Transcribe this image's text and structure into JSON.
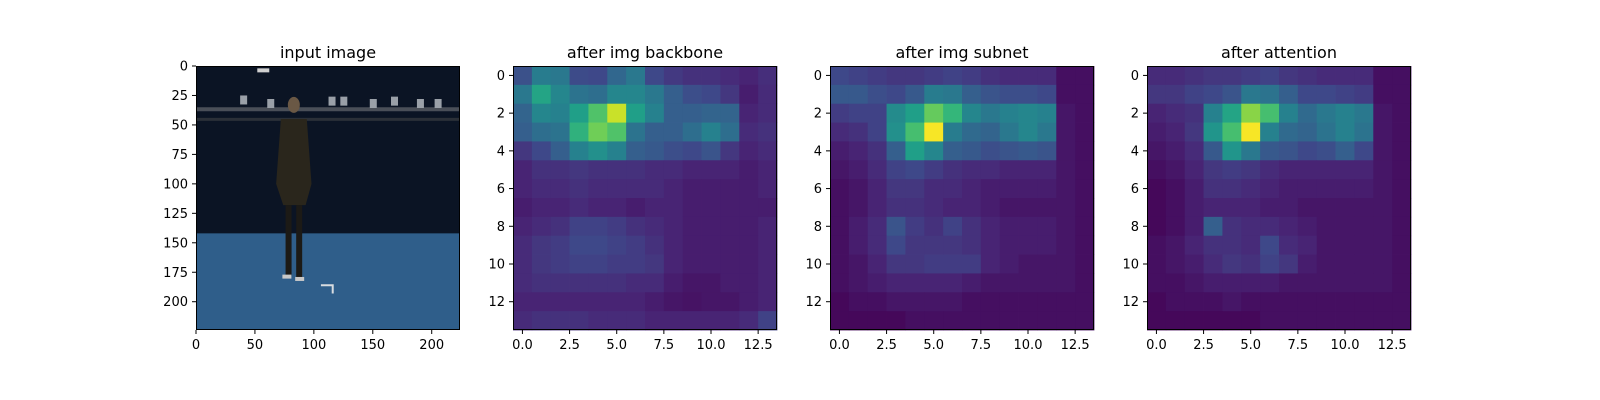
{
  "chart_data": [
    {
      "type": "image",
      "title": "input image",
      "xlim": [
        0,
        224
      ],
      "ylim": [
        224,
        0
      ],
      "x_ticks": [
        0,
        50,
        100,
        150,
        200
      ],
      "y_ticks": [
        0,
        25,
        50,
        75,
        100,
        125,
        150,
        175,
        200
      ],
      "scene_colors": {
        "backdrop": "#0b1424",
        "floor": "#2f5e8a",
        "person": "#2a261c"
      }
    },
    {
      "type": "heatmap",
      "title": "after img backbone",
      "x_ticks": [
        "0.0",
        "2.5",
        "5.0",
        "7.5",
        "10.0",
        "12.5"
      ],
      "y_ticks": [
        0,
        2,
        4,
        6,
        8,
        10,
        12
      ],
      "colormap": "viridis",
      "values": [
        [
          0.25,
          0.42,
          0.4,
          0.23,
          0.22,
          0.33,
          0.4,
          0.22,
          0.17,
          0.14,
          0.14,
          0.12,
          0.1,
          0.13
        ],
        [
          0.4,
          0.58,
          0.46,
          0.38,
          0.36,
          0.46,
          0.46,
          0.4,
          0.3,
          0.24,
          0.22,
          0.16,
          0.08,
          0.12
        ],
        [
          0.32,
          0.46,
          0.44,
          0.56,
          0.72,
          0.92,
          0.56,
          0.44,
          0.3,
          0.3,
          0.32,
          0.32,
          0.1,
          0.12
        ],
        [
          0.3,
          0.36,
          0.38,
          0.64,
          0.78,
          0.72,
          0.38,
          0.3,
          0.3,
          0.36,
          0.44,
          0.36,
          0.12,
          0.14
        ],
        [
          0.16,
          0.22,
          0.3,
          0.44,
          0.5,
          0.44,
          0.3,
          0.28,
          0.24,
          0.22,
          0.26,
          0.16,
          0.1,
          0.12
        ],
        [
          0.1,
          0.14,
          0.14,
          0.16,
          0.14,
          0.14,
          0.14,
          0.12,
          0.12,
          0.1,
          0.1,
          0.1,
          0.08,
          0.1
        ],
        [
          0.1,
          0.12,
          0.12,
          0.14,
          0.12,
          0.12,
          0.12,
          0.12,
          0.1,
          0.08,
          0.08,
          0.08,
          0.08,
          0.1
        ],
        [
          0.08,
          0.1,
          0.1,
          0.12,
          0.1,
          0.1,
          0.08,
          0.1,
          0.1,
          0.08,
          0.08,
          0.08,
          0.08,
          0.08
        ],
        [
          0.1,
          0.12,
          0.14,
          0.2,
          0.2,
          0.18,
          0.14,
          0.12,
          0.1,
          0.08,
          0.08,
          0.08,
          0.08,
          0.1
        ],
        [
          0.12,
          0.16,
          0.18,
          0.22,
          0.22,
          0.2,
          0.18,
          0.14,
          0.1,
          0.08,
          0.08,
          0.08,
          0.08,
          0.1
        ],
        [
          0.12,
          0.16,
          0.18,
          0.2,
          0.2,
          0.18,
          0.18,
          0.16,
          0.1,
          0.08,
          0.08,
          0.08,
          0.08,
          0.1
        ],
        [
          0.12,
          0.14,
          0.14,
          0.14,
          0.14,
          0.14,
          0.12,
          0.12,
          0.08,
          0.06,
          0.06,
          0.08,
          0.08,
          0.1
        ],
        [
          0.1,
          0.1,
          0.1,
          0.1,
          0.1,
          0.1,
          0.1,
          0.08,
          0.06,
          0.05,
          0.06,
          0.06,
          0.08,
          0.1
        ],
        [
          0.12,
          0.14,
          0.14,
          0.14,
          0.12,
          0.12,
          0.12,
          0.1,
          0.1,
          0.1,
          0.1,
          0.1,
          0.12,
          0.2
        ]
      ]
    },
    {
      "type": "heatmap",
      "title": "after img subnet",
      "x_ticks": [
        "0.0",
        "2.5",
        "5.0",
        "7.5",
        "10.0",
        "12.5"
      ],
      "y_ticks": [
        0,
        2,
        4,
        6,
        8,
        10,
        12
      ],
      "colormap": "viridis",
      "values": [
        [
          0.22,
          0.2,
          0.18,
          0.16,
          0.16,
          0.18,
          0.2,
          0.18,
          0.14,
          0.12,
          0.12,
          0.12,
          0.04,
          0.04
        ],
        [
          0.28,
          0.28,
          0.24,
          0.22,
          0.28,
          0.42,
          0.4,
          0.3,
          0.26,
          0.24,
          0.24,
          0.22,
          0.04,
          0.04
        ],
        [
          0.18,
          0.2,
          0.2,
          0.48,
          0.56,
          0.76,
          0.66,
          0.46,
          0.4,
          0.44,
          0.46,
          0.44,
          0.06,
          0.04
        ],
        [
          0.12,
          0.14,
          0.2,
          0.5,
          0.7,
          0.99,
          0.42,
          0.34,
          0.32,
          0.4,
          0.46,
          0.4,
          0.06,
          0.04
        ],
        [
          0.08,
          0.1,
          0.14,
          0.3,
          0.56,
          0.46,
          0.3,
          0.28,
          0.24,
          0.26,
          0.28,
          0.26,
          0.06,
          0.04
        ],
        [
          0.06,
          0.08,
          0.12,
          0.2,
          0.22,
          0.18,
          0.14,
          0.12,
          0.12,
          0.1,
          0.1,
          0.1,
          0.06,
          0.04
        ],
        [
          0.04,
          0.06,
          0.1,
          0.16,
          0.16,
          0.12,
          0.12,
          0.1,
          0.08,
          0.08,
          0.08,
          0.08,
          0.06,
          0.04
        ],
        [
          0.04,
          0.06,
          0.1,
          0.14,
          0.14,
          0.12,
          0.1,
          0.1,
          0.08,
          0.06,
          0.06,
          0.06,
          0.06,
          0.04
        ],
        [
          0.04,
          0.08,
          0.12,
          0.26,
          0.18,
          0.14,
          0.2,
          0.14,
          0.1,
          0.08,
          0.08,
          0.08,
          0.06,
          0.04
        ],
        [
          0.04,
          0.08,
          0.12,
          0.22,
          0.16,
          0.16,
          0.16,
          0.14,
          0.1,
          0.08,
          0.08,
          0.08,
          0.06,
          0.04
        ],
        [
          0.04,
          0.06,
          0.1,
          0.16,
          0.16,
          0.18,
          0.18,
          0.18,
          0.1,
          0.08,
          0.06,
          0.06,
          0.06,
          0.04
        ],
        [
          0.04,
          0.06,
          0.08,
          0.1,
          0.1,
          0.1,
          0.1,
          0.08,
          0.06,
          0.06,
          0.06,
          0.06,
          0.06,
          0.04
        ],
        [
          0.02,
          0.04,
          0.04,
          0.06,
          0.06,
          0.06,
          0.06,
          0.04,
          0.04,
          0.04,
          0.04,
          0.04,
          0.04,
          0.04
        ],
        [
          0.02,
          0.02,
          0.02,
          0.02,
          0.04,
          0.04,
          0.04,
          0.04,
          0.04,
          0.04,
          0.04,
          0.04,
          0.04,
          0.04
        ]
      ]
    },
    {
      "type": "heatmap",
      "title": "after attention",
      "x_ticks": [
        "0.0",
        "2.5",
        "5.0",
        "7.5",
        "10.0",
        "12.5"
      ],
      "y_ticks": [
        0,
        2,
        4,
        6,
        8,
        10,
        12
      ],
      "colormap": "viridis",
      "values": [
        [
          0.12,
          0.12,
          0.14,
          0.16,
          0.16,
          0.18,
          0.2,
          0.16,
          0.14,
          0.12,
          0.12,
          0.12,
          0.04,
          0.04
        ],
        [
          0.16,
          0.16,
          0.2,
          0.22,
          0.26,
          0.4,
          0.38,
          0.3,
          0.22,
          0.22,
          0.2,
          0.18,
          0.04,
          0.04
        ],
        [
          0.1,
          0.12,
          0.14,
          0.44,
          0.58,
          0.82,
          0.7,
          0.44,
          0.34,
          0.4,
          0.44,
          0.4,
          0.06,
          0.04
        ],
        [
          0.08,
          0.1,
          0.16,
          0.52,
          0.7,
          0.99,
          0.44,
          0.34,
          0.32,
          0.38,
          0.44,
          0.38,
          0.06,
          0.04
        ],
        [
          0.06,
          0.08,
          0.12,
          0.28,
          0.52,
          0.4,
          0.28,
          0.26,
          0.22,
          0.24,
          0.3,
          0.22,
          0.06,
          0.04
        ],
        [
          0.04,
          0.06,
          0.1,
          0.16,
          0.18,
          0.16,
          0.12,
          0.1,
          0.1,
          0.1,
          0.1,
          0.1,
          0.06,
          0.04
        ],
        [
          0.02,
          0.04,
          0.08,
          0.14,
          0.14,
          0.12,
          0.1,
          0.08,
          0.08,
          0.08,
          0.08,
          0.08,
          0.06,
          0.04
        ],
        [
          0.02,
          0.04,
          0.08,
          0.1,
          0.1,
          0.1,
          0.08,
          0.08,
          0.06,
          0.06,
          0.06,
          0.06,
          0.06,
          0.04
        ],
        [
          0.02,
          0.04,
          0.08,
          0.3,
          0.14,
          0.12,
          0.12,
          0.1,
          0.08,
          0.06,
          0.06,
          0.06,
          0.06,
          0.04
        ],
        [
          0.04,
          0.06,
          0.1,
          0.14,
          0.14,
          0.12,
          0.22,
          0.12,
          0.1,
          0.06,
          0.06,
          0.06,
          0.06,
          0.04
        ],
        [
          0.04,
          0.06,
          0.08,
          0.12,
          0.16,
          0.14,
          0.2,
          0.16,
          0.08,
          0.06,
          0.06,
          0.06,
          0.06,
          0.04
        ],
        [
          0.04,
          0.04,
          0.06,
          0.08,
          0.08,
          0.08,
          0.08,
          0.06,
          0.06,
          0.06,
          0.06,
          0.06,
          0.06,
          0.04
        ],
        [
          0.02,
          0.04,
          0.04,
          0.04,
          0.06,
          0.04,
          0.04,
          0.04,
          0.04,
          0.04,
          0.04,
          0.04,
          0.04,
          0.04
        ],
        [
          0.02,
          0.02,
          0.02,
          0.02,
          0.02,
          0.02,
          0.04,
          0.04,
          0.04,
          0.04,
          0.04,
          0.04,
          0.04,
          0.04
        ]
      ]
    }
  ]
}
